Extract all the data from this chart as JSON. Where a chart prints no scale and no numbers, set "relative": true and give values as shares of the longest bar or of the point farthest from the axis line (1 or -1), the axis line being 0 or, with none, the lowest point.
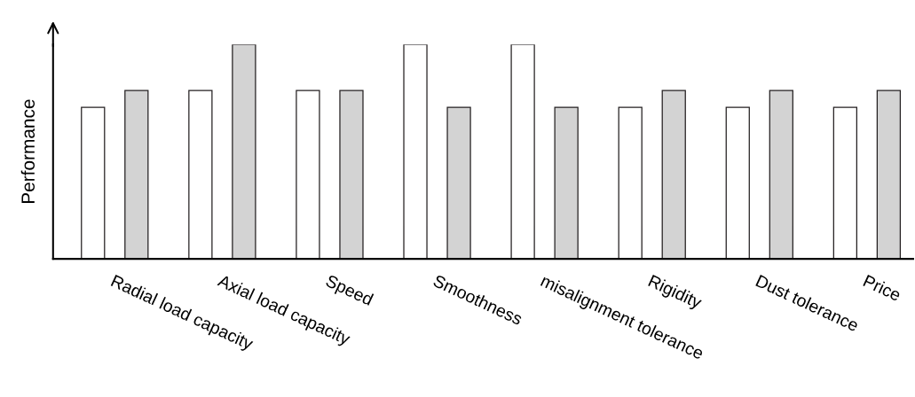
{
  "chart_data": {
    "type": "bar",
    "ylabel": "Performance",
    "relative": true,
    "grid": false,
    "legend": false,
    "categories": [
      "Radial load capacity",
      "Axial load capacity",
      "Speed",
      "Smoothness",
      "misalignment tolerance",
      "Rigidity",
      "Dust tolerance",
      "Price"
    ],
    "series": [
      {
        "color": "#ffffff",
        "values": [
          0.707,
          0.785,
          0.785,
          1,
          1,
          0.707,
          0.707,
          0.707
        ]
      },
      {
        "color": "#d3d3d3",
        "values": [
          0.785,
          1,
          0.785,
          0.707,
          0.707,
          0.785,
          0.785,
          0.785
        ]
      }
    ]
  }
}
